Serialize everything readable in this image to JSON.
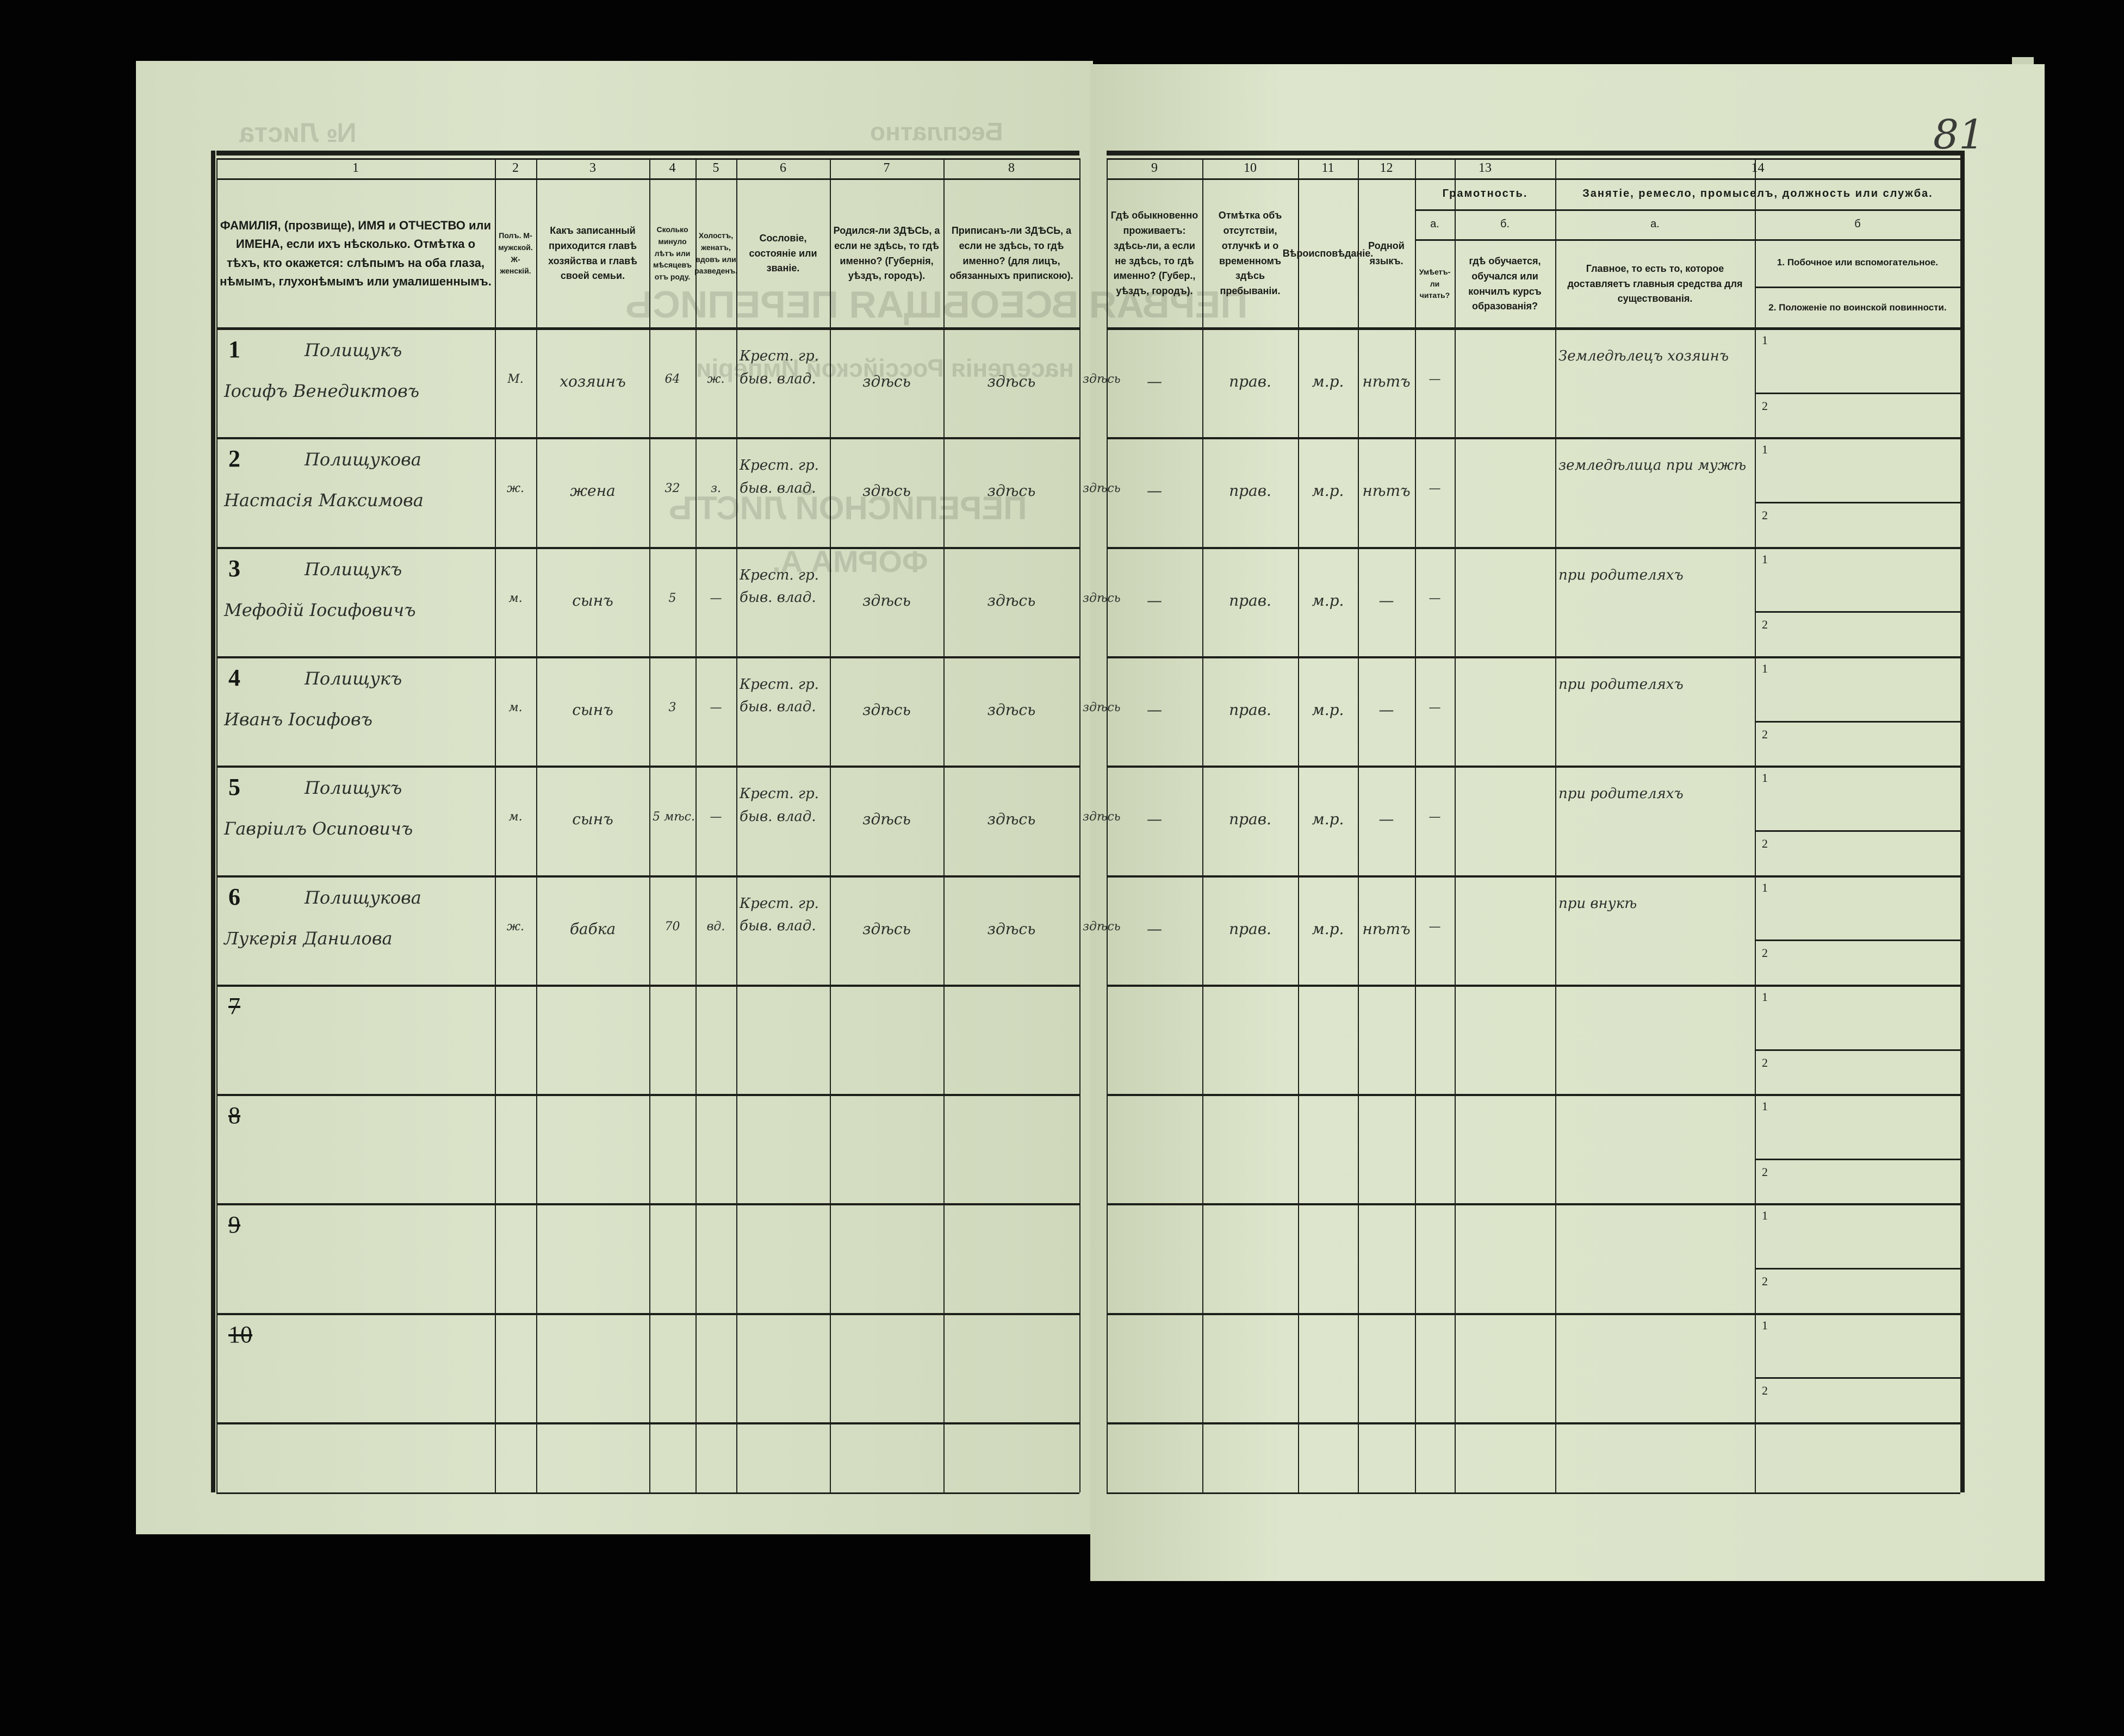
{
  "page_number": "81",
  "ghost_text": {
    "sheet_no": "№ Листа",
    "free": "Бесплатно",
    "census_title": "ПЕРВАЯ ВСЕОБЩАЯ ПЕРЕПИСЬ",
    "empire": "населенія Россійской Имперіи",
    "sheet_title": "ПЕРЕПИСНОЙ ЛИСТЪ",
    "form": "ФОРМА А."
  },
  "columns": [
    {
      "number": "1",
      "header": "ФАМИЛІЯ, (прозвище), ИМЯ и ОТЧЕСТВО или ИМЕНА, если ихъ нѣсколько. Отмѣтка о тѣхъ, кто окажется: слѣпымъ на оба глаза, нѣмымъ, глухонѣмымъ или умалишеннымъ."
    },
    {
      "number": "2",
      "header": "Полъ. М-мужской. Ж-женскій."
    },
    {
      "number": "3",
      "header": "Какъ записанный приходится главѣ хозяйства и главѣ своей семьи."
    },
    {
      "number": "4",
      "header": "Сколько минуло лѣтъ или мѣсяцевъ отъ роду."
    },
    {
      "number": "5",
      "header": "Холостъ, женатъ, вдовъ или разведенъ."
    },
    {
      "number": "6",
      "header": "Сословіе, состояніе или званіе."
    },
    {
      "number": "7",
      "header": "Родился-ли ЗДѢСЬ, а если не здѣсь, то гдѣ именно? (Губернія, уѣздъ, городъ)."
    },
    {
      "number": "8",
      "header": "Приписанъ-ли ЗДѢСЬ, а если не здѣсь, то гдѣ именно? (для лицъ, обязанныхъ припискою)."
    },
    {
      "number": "9",
      "header": "Гдѣ обыкновенно проживаетъ: здѣсь-ли, а если не здѣсь, то гдѣ именно? (Губер., уѣздъ, городъ)."
    },
    {
      "number": "10",
      "header": "Отмѣтка объ отсутствіи, отлучкѣ и о временномъ здѣсь пребываніи."
    },
    {
      "number": "11",
      "header": "Вѣроисповѣданіе."
    },
    {
      "number": "12",
      "header": "Родной языкъ."
    },
    {
      "number": "13",
      "group": "Грамотность.",
      "sub": [
        {
          "letter": "а.",
          "header": "Умѣетъ-ли читать?"
        },
        {
          "letter": "б.",
          "header": "гдѣ обучается, обучался или кончилъ курсъ образованія?"
        }
      ]
    },
    {
      "number": "14",
      "group": "Занятіе, ремесло, промыселъ, должность или служба.",
      "sub": [
        {
          "letter": "а.",
          "header": "Главное, то есть то, которое доставляетъ главныя средства для существованія."
        },
        {
          "letter": "б",
          "header_1": "1. Побочное или вспомогательное.",
          "header_2": "2. Положеніе по воинской повинности."
        }
      ]
    }
  ],
  "subrow_labels": [
    "1",
    "2"
  ],
  "rows": [
    {
      "no": "1",
      "surname": "Полищукъ",
      "name": "Іосифъ Венедиктовъ",
      "sex": "М.",
      "relation": "хозяинъ",
      "age": "64",
      "marital": "ж.",
      "estate": "Крест. гр. быв. влад.",
      "born": "здѣсь",
      "registered": "здѣсь",
      "resides": "здѣсь",
      "absence": "—",
      "religion": "прав.",
      "language": "м.р.",
      "literate": "нѣтъ",
      "schooling": "—",
      "occupation": "Земледѣлецъ хозяинъ"
    },
    {
      "no": "2",
      "surname": "Полищукова",
      "name": "Настасія Максимова",
      "sex": "ж.",
      "relation": "жена",
      "age": "32",
      "marital": "з.",
      "estate": "Крест. гр. быв. влад.",
      "born": "здѣсь",
      "registered": "здѣсь",
      "resides": "здѣсь",
      "absence": "—",
      "religion": "прав.",
      "language": "м.р.",
      "literate": "нѣтъ",
      "schooling": "—",
      "occupation": "земледѣлица при мужѣ"
    },
    {
      "no": "3",
      "surname": "Полищукъ",
      "name": "Мефодій Іосифовичъ",
      "sex": "м.",
      "relation": "сынъ",
      "age": "5",
      "marital": "—",
      "estate": "Крест. гр. быв. влад.",
      "born": "здѣсь",
      "registered": "здѣсь",
      "resides": "здѣсь",
      "absence": "—",
      "religion": "прав.",
      "language": "м.р.",
      "literate": "—",
      "schooling": "—",
      "occupation": "при родителяхъ"
    },
    {
      "no": "4",
      "surname": "Полищукъ",
      "name": "Иванъ Іосифовъ",
      "sex": "м.",
      "relation": "сынъ",
      "age": "3",
      "marital": "—",
      "estate": "Крест. гр. быв. влад.",
      "born": "здѣсь",
      "registered": "здѣсь",
      "resides": "здѣсь",
      "absence": "—",
      "religion": "прав.",
      "language": "м.р.",
      "literate": "—",
      "schooling": "—",
      "occupation": "при родителяхъ"
    },
    {
      "no": "5",
      "surname": "Полищукъ",
      "name": "Гавріилъ Осиповичъ",
      "sex": "м.",
      "relation": "сынъ",
      "age": "5 мѣс.",
      "marital": "—",
      "estate": "Крест. гр. быв. влад.",
      "born": "здѣсь",
      "registered": "здѣсь",
      "resides": "здѣсь",
      "absence": "—",
      "religion": "прав.",
      "language": "м.р.",
      "literate": "—",
      "schooling": "—",
      "occupation": "при родителяхъ"
    },
    {
      "no": "6",
      "surname": "Полищукова",
      "name": "Лукерія Данилова",
      "sex": "ж.",
      "relation": "бабка",
      "age": "70",
      "marital": "вд.",
      "estate": "Крест. гр. быв. влад.",
      "born": "здѣсь",
      "registered": "здѣсь",
      "resides": "здѣсь",
      "absence": "—",
      "religion": "прав.",
      "language": "м.р.",
      "literate": "нѣтъ",
      "schooling": "—",
      "occupation": "при внукѣ"
    },
    {
      "no": "7"
    },
    {
      "no": "8"
    },
    {
      "no": "9"
    },
    {
      "no": "10"
    }
  ]
}
